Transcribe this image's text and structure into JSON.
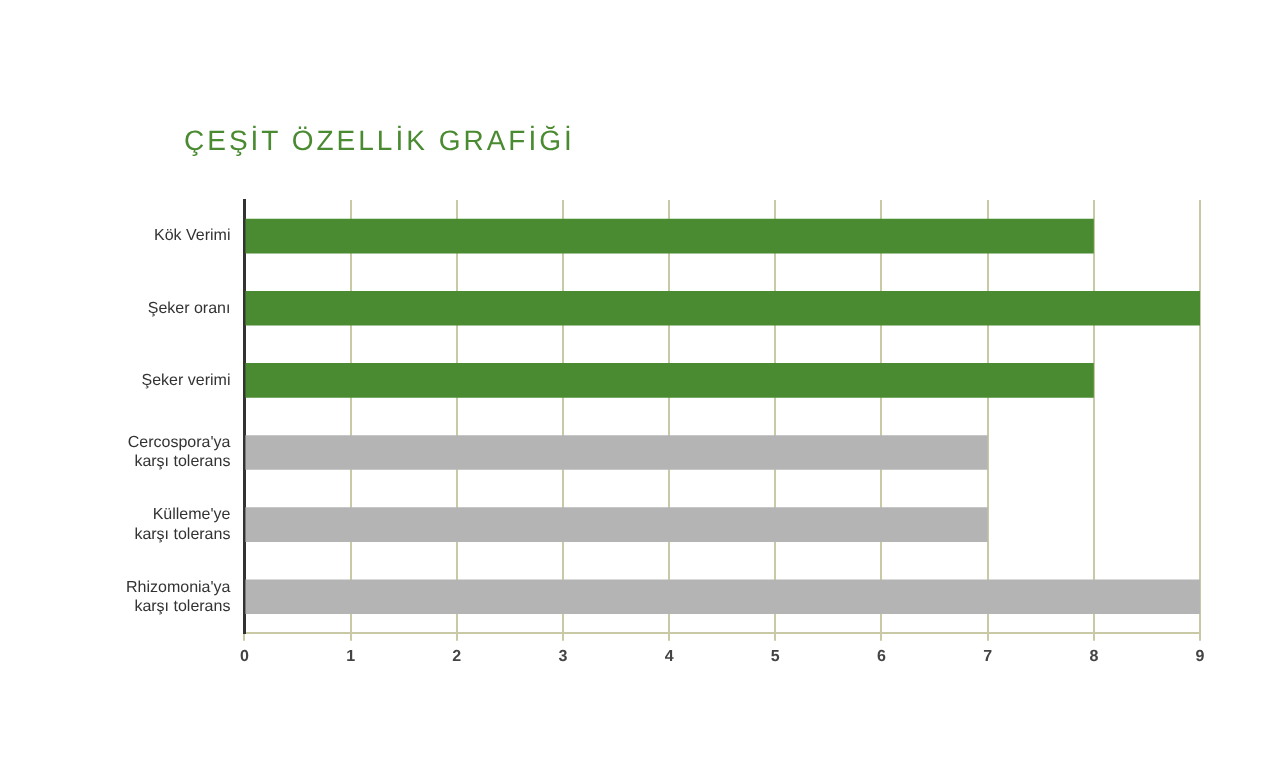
{
  "chart_data": {
    "type": "bar",
    "orientation": "horizontal",
    "title": "ÇEŞİT ÖZELLİK GRAFİĞİ",
    "categories": [
      "Kök Verimi",
      "Şeker oranı",
      "Şeker verimi",
      "Cercospora'ya karşı tolerans",
      "Külleme'ye karşı tolerans",
      "Rhizomonia'ya karşı tolerans"
    ],
    "values": [
      8,
      9,
      8,
      7,
      7,
      9
    ],
    "colors": [
      "#4a8a30",
      "#4a8a30",
      "#4a8a30",
      "#b4b4b4",
      "#b4b4b4",
      "#b4b4b4"
    ],
    "xlim": [
      0,
      9
    ],
    "xticks": [
      0,
      1,
      2,
      3,
      4,
      5,
      6,
      7,
      8,
      9
    ],
    "grid": "x"
  }
}
